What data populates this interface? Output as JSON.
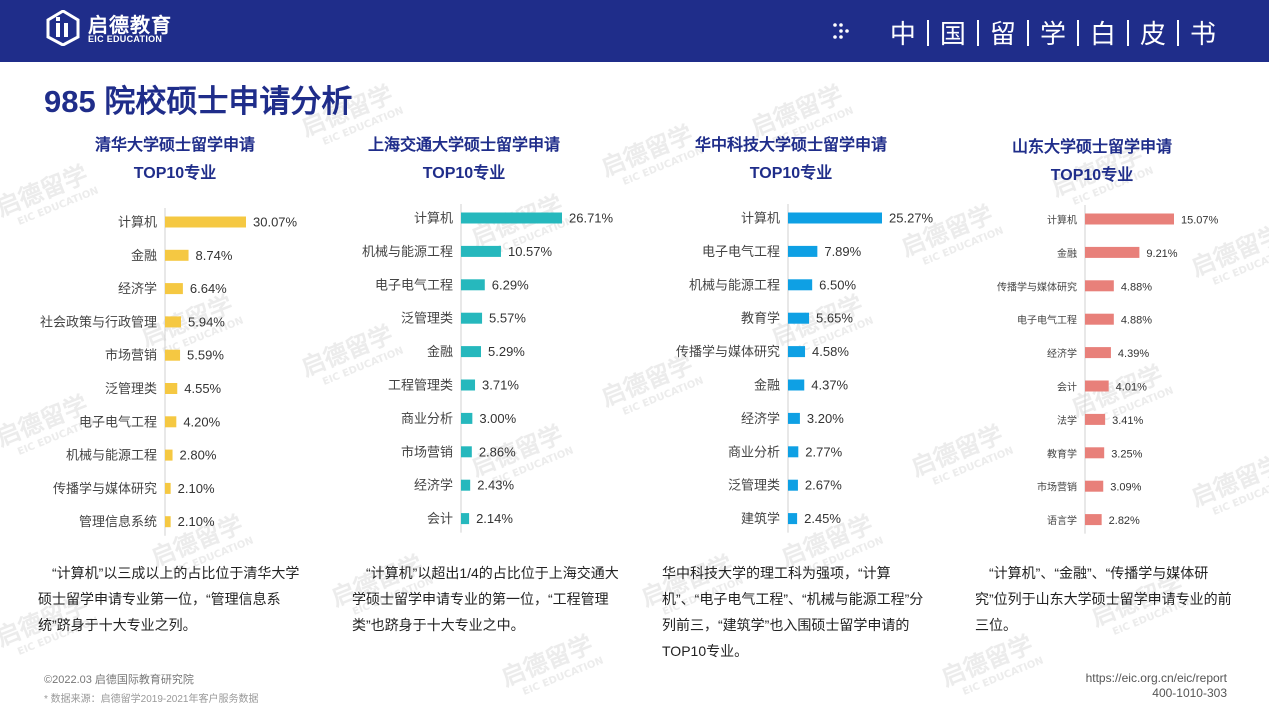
{
  "header": {
    "brand_cn": "启德教育",
    "brand_en": "EIC EDUCATION",
    "series_chars": [
      "中",
      "国",
      "留",
      "学",
      "白",
      "皮",
      "书"
    ]
  },
  "page_title": "985 院校硕士申请分析",
  "watermark": {
    "cn": "启德留学",
    "en": "EIC EDUCATION"
  },
  "chart_data": [
    {
      "type": "bar",
      "orientation": "horizontal",
      "title": "清华大学硕士留学申请",
      "subtitle": "TOP10专业",
      "color": "#f5c842",
      "categories": [
        "计算机",
        "金融",
        "经济学",
        "社会政策与行政管理",
        "市场营销",
        "泛管理类",
        "电子电气工程",
        "机械与能源工程",
        "传播学与媒体研究",
        "管理信息系统"
      ],
      "values": [
        30.07,
        8.74,
        6.64,
        5.94,
        5.59,
        4.55,
        4.2,
        2.8,
        2.1,
        2.1
      ],
      "labels": [
        "30.07%",
        "8.74%",
        "6.64%",
        "5.94%",
        "5.59%",
        "4.55%",
        "4.20%",
        "2.80%",
        "2.10%",
        "2.10%"
      ]
    },
    {
      "type": "bar",
      "orientation": "horizontal",
      "title": "上海交通大学硕士留学申请",
      "subtitle": "TOP10专业",
      "color": "#26b8bd",
      "categories": [
        "计算机",
        "机械与能源工程",
        "电子电气工程",
        "泛管理类",
        "金融",
        "工程管理类",
        "商业分析",
        "市场营销",
        "经济学",
        "会计"
      ],
      "values": [
        26.71,
        10.57,
        6.29,
        5.57,
        5.29,
        3.71,
        3.0,
        2.86,
        2.43,
        2.14
      ],
      "labels": [
        "26.71%",
        "10.57%",
        "6.29%",
        "5.57%",
        "5.29%",
        "3.71%",
        "3.00%",
        "2.86%",
        "2.43%",
        "2.14%"
      ]
    },
    {
      "type": "bar",
      "orientation": "horizontal",
      "title": "华中科技大学硕士留学申请",
      "subtitle": "TOP10专业",
      "color": "#0ea0e4",
      "categories": [
        "计算机",
        "电子电气工程",
        "机械与能源工程",
        "教育学",
        "传播学与媒体研究",
        "金融",
        "经济学",
        "商业分析",
        "泛管理类",
        "建筑学"
      ],
      "values": [
        25.27,
        7.89,
        6.5,
        5.65,
        4.58,
        4.37,
        3.2,
        2.77,
        2.67,
        2.45
      ],
      "labels": [
        "25.27%",
        "7.89%",
        "6.50%",
        "5.65%",
        "4.58%",
        "4.37%",
        "3.20%",
        "2.77%",
        "2.67%",
        "2.45%"
      ]
    },
    {
      "type": "bar",
      "orientation": "horizontal",
      "title": "山东大学硕士留学申请",
      "subtitle": "TOP10专业",
      "color": "#e8807a",
      "categories": [
        "计算机",
        "金融",
        "传播学与媒体研究",
        "电子电气工程",
        "经济学",
        "会计",
        "法学",
        "教育学",
        "市场营销",
        "语言学"
      ],
      "values": [
        15.07,
        9.21,
        4.88,
        4.88,
        4.39,
        4.01,
        3.41,
        3.25,
        3.09,
        2.82
      ],
      "labels": [
        "15.07%",
        "9.21%",
        "4.88%",
        "4.88%",
        "4.39%",
        "4.01%",
        "3.41%",
        "3.25%",
        "3.09%",
        "2.82%"
      ]
    }
  ],
  "descriptions": [
    "“计算机”以三成以上的占比位于清华大学硕士留学申请专业第一位，“管理信息系统”跻身于十大专业之列。",
    "“计算机”以超出1/4的占比位于上海交通大学硕士留学申请专业的第一位，“工程管理类”也跻身于十大专业之中。",
    "华中科技大学的理工科为强项，“计算机”、“电子电气工程”、“机械与能源工程”分列前三，“建筑学”也入围硕士留学申请的TOP10专业。",
    "“计算机”、“金融”、“传播学与媒体研究”位列于山东大学硕士留学申请专业的前三位。"
  ],
  "footer": {
    "copyright": "©2022.03 启德国际教育研究院",
    "source": "* 数据来源：启德留学2019-2021年客户服务数据",
    "url": "https://eic.org.cn/eic/report",
    "phone": "400-1010-303"
  }
}
